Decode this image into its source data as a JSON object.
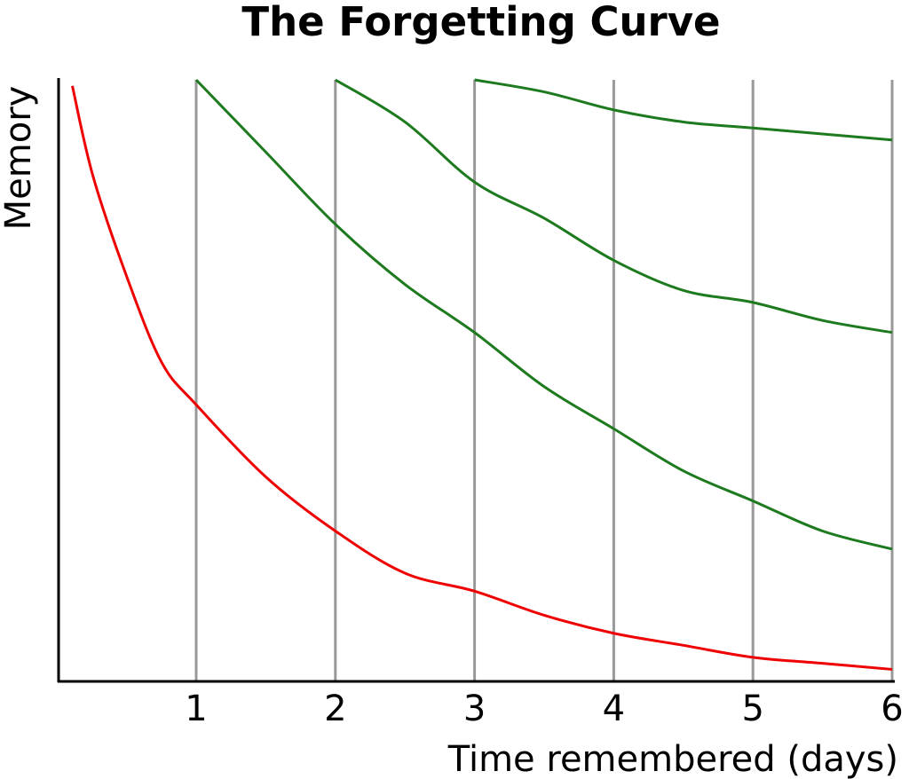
{
  "chart_data": {
    "type": "line",
    "title": "The Forgetting Curve",
    "xlabel": "Time remembered (days)",
    "ylabel": "Memory",
    "xlim": [
      0,
      6
    ],
    "ylim": [
      0,
      1
    ],
    "x_ticks": [
      "1",
      "2",
      "3",
      "4",
      "5",
      "6"
    ],
    "grid": "vertical lines at each day",
    "legend": "none",
    "colors": {
      "initial_curve": "#ee0000",
      "review_curves": "#1e7a1e",
      "gridlines": "#999999",
      "axes": "#000000"
    },
    "series": [
      {
        "color": "#ee0000",
        "x": [
          0.1,
          0.25,
          0.5,
          0.75,
          1,
          1.5,
          2,
          2.5,
          3,
          3.5,
          4,
          4.5,
          5,
          5.5,
          6
        ],
        "y": [
          0.99,
          0.84,
          0.67,
          0.53,
          0.46,
          0.34,
          0.25,
          0.18,
          0.15,
          0.11,
          0.08,
          0.06,
          0.04,
          0.03,
          0.02
        ]
      },
      {
        "color": "#1e7a1e",
        "x": [
          1,
          1.5,
          2,
          2.5,
          3,
          3.5,
          4,
          4.5,
          5,
          5.5,
          6
        ],
        "y": [
          1.0,
          0.88,
          0.76,
          0.66,
          0.58,
          0.49,
          0.42,
          0.35,
          0.3,
          0.25,
          0.22
        ]
      },
      {
        "color": "#1e7a1e",
        "x": [
          2,
          2.5,
          3,
          3.5,
          4,
          4.5,
          5,
          5.5,
          6
        ],
        "y": [
          1.0,
          0.93,
          0.83,
          0.77,
          0.7,
          0.65,
          0.63,
          0.6,
          0.58
        ]
      },
      {
        "color": "#1e7a1e",
        "x": [
          3,
          3.5,
          4,
          4.5,
          5,
          5.5,
          6
        ],
        "y": [
          1.0,
          0.98,
          0.95,
          0.93,
          0.92,
          0.91,
          0.9
        ]
      }
    ]
  }
}
